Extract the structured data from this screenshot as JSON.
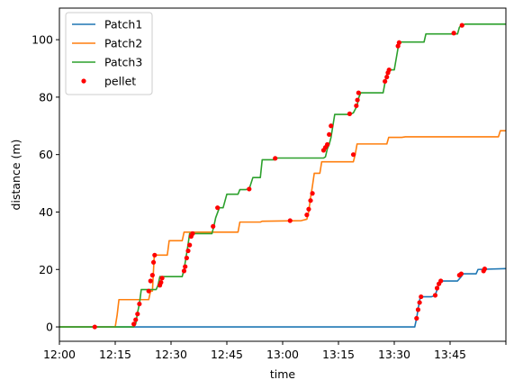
{
  "chart_data": {
    "type": "line",
    "xlabel": "time",
    "ylabel": "distance (m)",
    "xlim": [
      "12:00",
      "14:00"
    ],
    "ylim": [
      -5,
      111
    ],
    "x_ticks": [
      "12:00",
      "12:15",
      "12:30",
      "12:45",
      "13:00",
      "13:15",
      "13:30",
      "13:45",
      "14:00"
    ],
    "x_tick_labels": [
      "12:00",
      "12:15",
      "12:30",
      "12:45",
      "13:00",
      "13:15",
      "13:30",
      "13:45",
      ""
    ],
    "y_ticks": [
      0,
      20,
      40,
      60,
      80,
      100
    ],
    "y_tick_labels": [
      "0",
      "20",
      "40",
      "60",
      "80",
      "100"
    ],
    "grid": false,
    "legend_position": "top-left",
    "series": [
      {
        "name": "Patch1",
        "color": "#1f77b4",
        "style": "step-line",
        "points": [
          [
            "12:00",
            0
          ],
          [
            "13:35.5",
            0
          ],
          [
            "13:36",
            3
          ],
          [
            "13:36.5",
            7
          ],
          [
            "13:37",
            10.5
          ],
          [
            "13:40",
            10.5
          ],
          [
            "13:41",
            11
          ],
          [
            "13:41.5",
            13
          ],
          [
            "13:42",
            15
          ],
          [
            "13:42.5",
            16
          ],
          [
            "13:47",
            16
          ],
          [
            "13:48",
            17.5
          ],
          [
            "13:48.5",
            18.5
          ],
          [
            "13:52",
            18.5
          ],
          [
            "13:52.5",
            20
          ],
          [
            "14:00",
            20.3
          ]
        ]
      },
      {
        "name": "Patch2",
        "color": "#ff7f0e",
        "style": "step-line",
        "points": [
          [
            "12:00",
            0
          ],
          [
            "12:15",
            0
          ],
          [
            "12:15.5",
            4
          ],
          [
            "12:16",
            9.5
          ],
          [
            "12:24",
            9.5
          ],
          [
            "12:24.5",
            12.5
          ],
          [
            "12:25",
            12.5
          ],
          [
            "12:25.5",
            25
          ],
          [
            "12:29",
            25
          ],
          [
            "12:29.5",
            30
          ],
          [
            "12:33",
            30
          ],
          [
            "12:33.5",
            33
          ],
          [
            "12:48",
            33
          ],
          [
            "12:48.5",
            36.5
          ],
          [
            "12:54",
            36.5
          ],
          [
            "12:54.5",
            36.8
          ],
          [
            "13:05",
            37
          ],
          [
            "13:06.5",
            37.5
          ],
          [
            "13:07",
            40
          ],
          [
            "13:07.5",
            45
          ],
          [
            "13:08",
            49
          ],
          [
            "13:08.5",
            53.5
          ],
          [
            "13:10",
            53.5
          ],
          [
            "13:10.5",
            57.5
          ],
          [
            "13:19",
            57.5
          ],
          [
            "13:19.5",
            60
          ],
          [
            "13:20",
            63.7
          ],
          [
            "13:28",
            63.7
          ],
          [
            "13:28.5",
            66
          ],
          [
            "13:32",
            66
          ],
          [
            "13:33",
            66.2
          ],
          [
            "13:58",
            66.2
          ],
          [
            "13:58.5",
            68.3
          ],
          [
            "14:00",
            68.3
          ]
        ]
      },
      {
        "name": "Patch3",
        "color": "#2ca02c",
        "style": "step-line",
        "points": [
          [
            "12:00",
            0
          ],
          [
            "12:20",
            0
          ],
          [
            "12:20.5",
            1
          ],
          [
            "12:21",
            5
          ],
          [
            "12:21.5",
            8
          ],
          [
            "12:22",
            13
          ],
          [
            "12:26",
            13
          ],
          [
            "12:26.5",
            14.5
          ],
          [
            "12:27",
            17.5
          ],
          [
            "12:33",
            17.5
          ],
          [
            "12:33.5",
            20
          ],
          [
            "12:34",
            24
          ],
          [
            "12:34.5",
            28
          ],
          [
            "12:35",
            32.5
          ],
          [
            "12:41",
            32.5
          ],
          [
            "12:41.5",
            35
          ],
          [
            "12:42",
            38
          ],
          [
            "12:43",
            41.5
          ],
          [
            "12:44",
            41.5
          ],
          [
            "12:45",
            46.2
          ],
          [
            "12:48",
            46.2
          ],
          [
            "12:48.5",
            47.8
          ],
          [
            "12:50",
            47.8
          ],
          [
            "12:51",
            48
          ],
          [
            "12:52",
            52
          ],
          [
            "12:54",
            52
          ],
          [
            "12:54.5",
            58.2
          ],
          [
            "12:58",
            58.2
          ],
          [
            "12:58.5",
            58.8
          ],
          [
            "13:11",
            58.8
          ],
          [
            "13:11.5",
            59.2
          ],
          [
            "13:12",
            62
          ],
          [
            "13:12.5",
            63.5
          ],
          [
            "13:13",
            66
          ],
          [
            "13:13.5",
            70
          ],
          [
            "13:14",
            74
          ],
          [
            "13:18",
            74
          ],
          [
            "13:19",
            74.5
          ],
          [
            "13:20",
            77
          ],
          [
            "13:20.5",
            80
          ],
          [
            "13:21",
            81.5
          ],
          [
            "13:27",
            81.5
          ],
          [
            "13:27.5",
            85
          ],
          [
            "13:28",
            88
          ],
          [
            "13:29",
            89.5
          ],
          [
            "13:30",
            89.5
          ],
          [
            "13:31",
            97
          ],
          [
            "13:31.5",
            99.2
          ],
          [
            "13:38",
            99.2
          ],
          [
            "13:38.5",
            102
          ],
          [
            "13:47",
            102
          ],
          [
            "13:47.5",
            104.3
          ],
          [
            "13:48",
            105
          ],
          [
            "13:49",
            105.4
          ],
          [
            "14:00",
            105.4
          ]
        ]
      }
    ],
    "scatter": {
      "name": "pellet",
      "color": "#ff0000",
      "points": [
        [
          "12:09.5",
          0
        ],
        [
          "12:20",
          1
        ],
        [
          "12:20.5",
          2.5
        ],
        [
          "12:21",
          4.5
        ],
        [
          "12:21.5",
          8
        ],
        [
          "12:24",
          12.5
        ],
        [
          "12:24.5",
          16
        ],
        [
          "12:25",
          18
        ],
        [
          "12:25.3",
          22.5
        ],
        [
          "12:25.6",
          25
        ],
        [
          "12:27",
          14.5
        ],
        [
          "12:27.3",
          15.5
        ],
        [
          "12:27.6",
          17
        ],
        [
          "12:33.5",
          19.5
        ],
        [
          "12:33.8",
          21
        ],
        [
          "12:34.2",
          24
        ],
        [
          "12:34.6",
          26.5
        ],
        [
          "12:35",
          28.5
        ],
        [
          "12:35.4",
          31.5
        ],
        [
          "12:35.8",
          32.5
        ],
        [
          "12:41.3",
          35
        ],
        [
          "12:42.5",
          41.5
        ],
        [
          "12:51",
          48
        ],
        [
          "12:58",
          58.7
        ],
        [
          "13:02",
          37
        ],
        [
          "13:06.5",
          39
        ],
        [
          "13:07",
          41
        ],
        [
          "13:07.5",
          44
        ],
        [
          "13:08",
          46.5
        ],
        [
          "13:11",
          61.5
        ],
        [
          "13:11.5",
          62.5
        ],
        [
          "13:12",
          63.5
        ],
        [
          "13:12.5",
          67
        ],
        [
          "13:13",
          70
        ],
        [
          "13:18",
          74.2
        ],
        [
          "13:19",
          60
        ],
        [
          "13:19.8",
          77
        ],
        [
          "13:20.1",
          79
        ],
        [
          "13:20.4",
          81.5
        ],
        [
          "13:27.5",
          85.5
        ],
        [
          "13:28",
          87
        ],
        [
          "13:28.3",
          88.5
        ],
        [
          "13:28.6",
          89.5
        ],
        [
          "13:31",
          97.8
        ],
        [
          "13:31.3",
          99
        ],
        [
          "13:36",
          3
        ],
        [
          "13:36.4",
          6
        ],
        [
          "13:36.8",
          8.5
        ],
        [
          "13:37.2",
          10.5
        ],
        [
          "13:41",
          11
        ],
        [
          "13:41.5",
          13.5
        ],
        [
          "13:42",
          15
        ],
        [
          "13:42.5",
          16
        ],
        [
          "13:46",
          102.3
        ],
        [
          "13:47.5",
          18
        ],
        [
          "13:48",
          18.5
        ],
        [
          "13:48.2",
          105
        ],
        [
          "13:54",
          19.5
        ],
        [
          "13:54.3",
          20.2
        ]
      ]
    }
  }
}
